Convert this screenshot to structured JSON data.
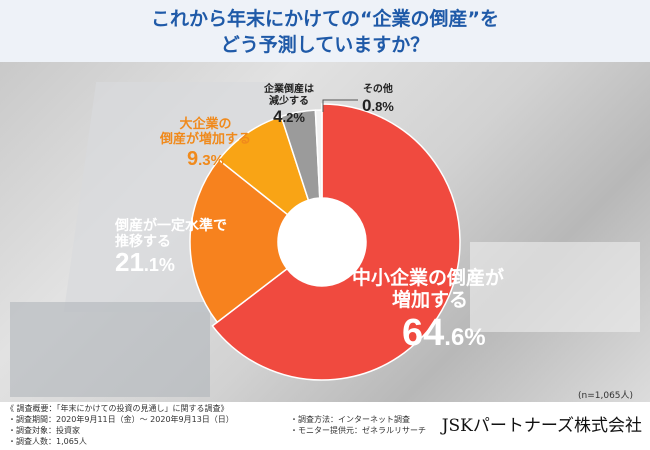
{
  "title_line1": "これから年末にかけての“企業の倒産”を",
  "title_line2": "どう予測していますか？",
  "chart_data": {
    "type": "pie",
    "variant": "donut",
    "categories": [
      "中小企業の倒産が増加する",
      "倒産が一定水準で推移する",
      "大企業の倒産が増加する",
      "企業倒産は減少する",
      "その他"
    ],
    "values": [
      64.6,
      21.1,
      9.3,
      4.2,
      0.8
    ],
    "unit": "%",
    "colors": [
      "#f04a3f",
      "#f7821e",
      "#f9a415",
      "#9b9b9b",
      "#f2f2f2"
    ],
    "sample_note": "(n=1,065人)"
  },
  "labels": [
    {
      "l1": "中小企業の倒産が",
      "l2": "増加する",
      "num": "64",
      "dec": ".6%"
    },
    {
      "l1": "倒産が一定水準で",
      "l2": "推移する",
      "num": "21",
      "dec": ".1%"
    },
    {
      "l1": "大企業の",
      "l2": "倒産が増加する",
      "num": "9",
      "dec": ".3%"
    },
    {
      "l1": "企業倒産は",
      "l2": "減少する",
      "num": "4",
      "dec": ".2%"
    },
    {
      "l1": "その他",
      "l2": "",
      "num": "0",
      "dec": ".8%"
    }
  ],
  "footer": {
    "overview": "《 調査概要：「年末にかけての投資の見通し」に関する調査》",
    "period": "・調査期間：2020年9月11日（金）～ 2020年9月13日（日）",
    "method": "・調査方法：インターネット調査",
    "count": "・調査人数：1,065人",
    "target": "・調査対象：投資家",
    "provider": "・モニター提供元：ゼネラルリサーチ",
    "company": "JSKパートナーズ株式会社"
  }
}
